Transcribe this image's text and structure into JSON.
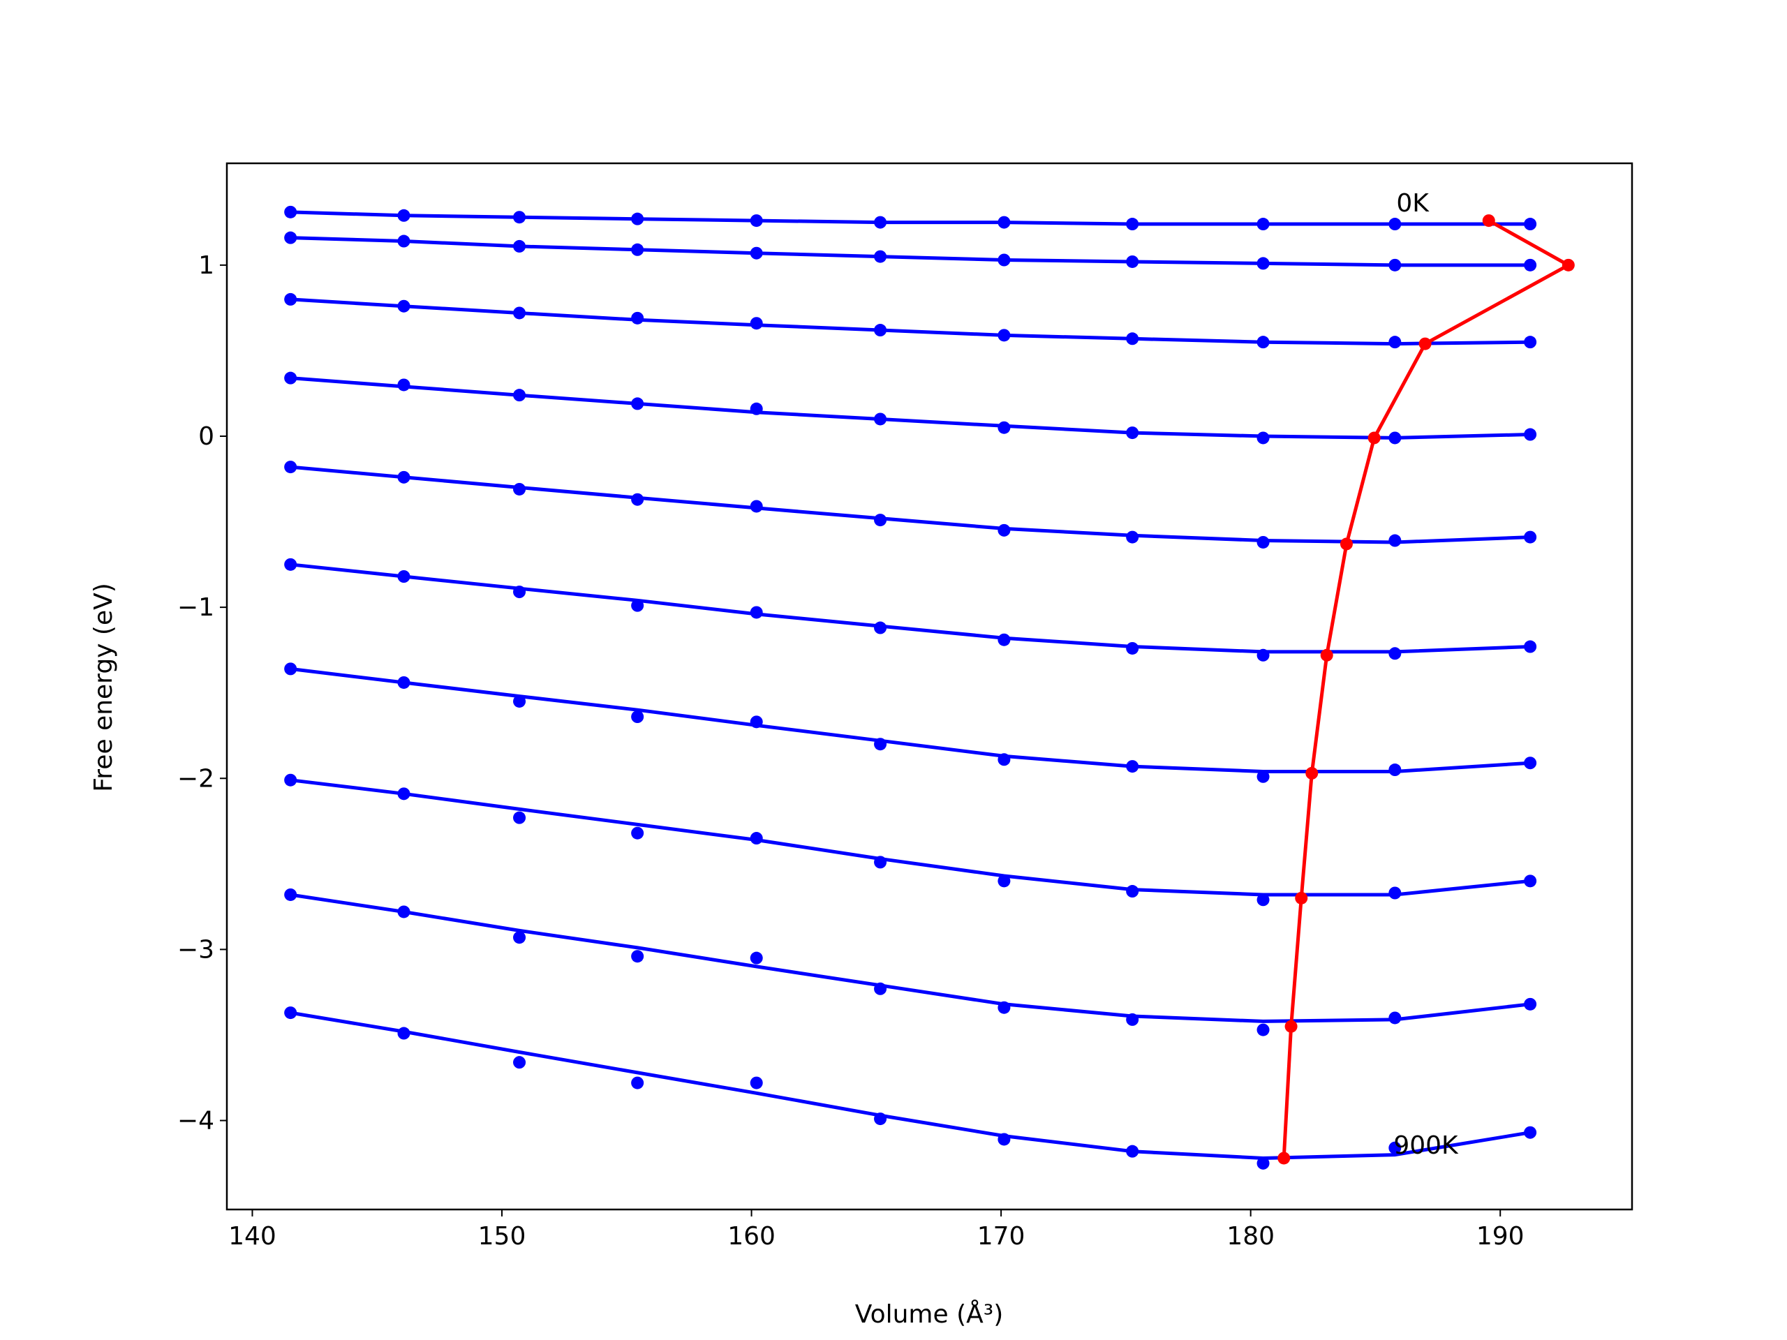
{
  "chart_data": {
    "type": "line",
    "xlabel": "Volume (Å³)",
    "ylabel": "Free energy (eV)",
    "xlim": [
      138.98,
      195.28
    ],
    "ylim": [
      -4.52,
      1.595
    ],
    "xticks": [
      140,
      150,
      160,
      170,
      180,
      190
    ],
    "yticks": [
      {
        "value": -4,
        "label": "−4"
      },
      {
        "value": -3,
        "label": "−3"
      },
      {
        "value": -2,
        "label": "−2"
      },
      {
        "value": -1,
        "label": "−1"
      },
      0,
      1
    ],
    "annotations": [
      "0K",
      "900K"
    ],
    "x": [
      141.53,
      146.07,
      150.7,
      155.43,
      160.2,
      165.16,
      170.12,
      175.26,
      180.5,
      185.78,
      191.2
    ],
    "series": [
      {
        "color": "#0000ff",
        "values": [
          1.31,
          1.29,
          1.28,
          1.27,
          1.26,
          1.25,
          1.25,
          1.24,
          1.24,
          1.24,
          1.24
        ],
        "fit": [
          1.31,
          1.29,
          1.28,
          1.27,
          1.26,
          1.25,
          1.25,
          1.24,
          1.24,
          1.24,
          1.24
        ]
      },
      {
        "color": "#0000ff",
        "values": [
          1.16,
          1.14,
          1.11,
          1.09,
          1.07,
          1.05,
          1.03,
          1.02,
          1.01,
          1.0,
          1.0
        ],
        "fit": [
          1.16,
          1.14,
          1.11,
          1.09,
          1.07,
          1.05,
          1.03,
          1.02,
          1.01,
          1.0,
          1.0
        ]
      },
      {
        "color": "#0000ff",
        "values": [
          0.8,
          0.76,
          0.72,
          0.69,
          0.66,
          0.62,
          0.59,
          0.57,
          0.55,
          0.55,
          0.55
        ],
        "fit": [
          0.8,
          0.76,
          0.72,
          0.68,
          0.65,
          0.62,
          0.59,
          0.57,
          0.55,
          0.54,
          0.55
        ]
      },
      {
        "color": "#0000ff",
        "values": [
          0.34,
          0.3,
          0.24,
          0.19,
          0.16,
          0.1,
          0.05,
          0.02,
          -0.01,
          -0.01,
          0.01
        ],
        "fit": [
          0.34,
          0.29,
          0.24,
          0.19,
          0.14,
          0.1,
          0.06,
          0.02,
          0.0,
          -0.01,
          0.01
        ]
      },
      {
        "color": "#0000ff",
        "values": [
          -0.18,
          -0.24,
          -0.31,
          -0.37,
          -0.41,
          -0.49,
          -0.55,
          -0.59,
          -0.62,
          -0.61,
          -0.59
        ],
        "fit": [
          -0.18,
          -0.24,
          -0.3,
          -0.36,
          -0.42,
          -0.48,
          -0.54,
          -0.58,
          -0.61,
          -0.62,
          -0.59
        ]
      },
      {
        "color": "#0000ff",
        "values": [
          -0.75,
          -0.82,
          -0.91,
          -0.99,
          -1.03,
          -1.12,
          -1.19,
          -1.24,
          -1.28,
          -1.27,
          -1.23
        ],
        "fit": [
          -0.75,
          -0.82,
          -0.89,
          -0.96,
          -1.04,
          -1.11,
          -1.18,
          -1.23,
          -1.26,
          -1.26,
          -1.23
        ]
      },
      {
        "color": "#0000ff",
        "values": [
          -1.36,
          -1.44,
          -1.55,
          -1.64,
          -1.67,
          -1.8,
          -1.89,
          -1.93,
          -1.99,
          -1.95,
          -1.91
        ],
        "fit": [
          -1.36,
          -1.44,
          -1.52,
          -1.6,
          -1.69,
          -1.78,
          -1.87,
          -1.93,
          -1.96,
          -1.96,
          -1.91
        ]
      },
      {
        "color": "#0000ff",
        "values": [
          -2.01,
          -2.09,
          -2.23,
          -2.32,
          -2.35,
          -2.49,
          -2.6,
          -2.66,
          -2.71,
          -2.67,
          -2.6
        ],
        "fit": [
          -2.01,
          -2.09,
          -2.18,
          -2.27,
          -2.36,
          -2.47,
          -2.57,
          -2.65,
          -2.68,
          -2.68,
          -2.6
        ]
      },
      {
        "color": "#0000ff",
        "values": [
          -2.68,
          -2.78,
          -2.93,
          -3.04,
          -3.05,
          -3.23,
          -3.34,
          -3.41,
          -3.47,
          -3.4,
          -3.32
        ],
        "fit": [
          -2.68,
          -2.78,
          -2.89,
          -2.99,
          -3.1,
          -3.21,
          -3.32,
          -3.39,
          -3.42,
          -3.41,
          -3.32
        ]
      },
      {
        "color": "#0000ff",
        "values": [
          -3.37,
          -3.49,
          -3.66,
          -3.78,
          -3.78,
          -3.99,
          -4.11,
          -4.18,
          -4.25,
          -4.16,
          -4.07
        ],
        "fit": [
          -3.37,
          -3.48,
          -3.6,
          -3.72,
          -3.84,
          -3.97,
          -4.09,
          -4.18,
          -4.22,
          -4.2,
          -4.07
        ]
      }
    ],
    "minimum": {
      "color": "#ff0000",
      "x": [
        189.54,
        192.73,
        186.99,
        184.95,
        183.84,
        183.05,
        182.45,
        182.03,
        181.62,
        181.33
      ],
      "values": [
        1.26,
        1.0,
        0.54,
        -0.01,
        -0.63,
        -1.28,
        -1.97,
        -2.7,
        -3.45,
        -4.22
      ]
    }
  }
}
